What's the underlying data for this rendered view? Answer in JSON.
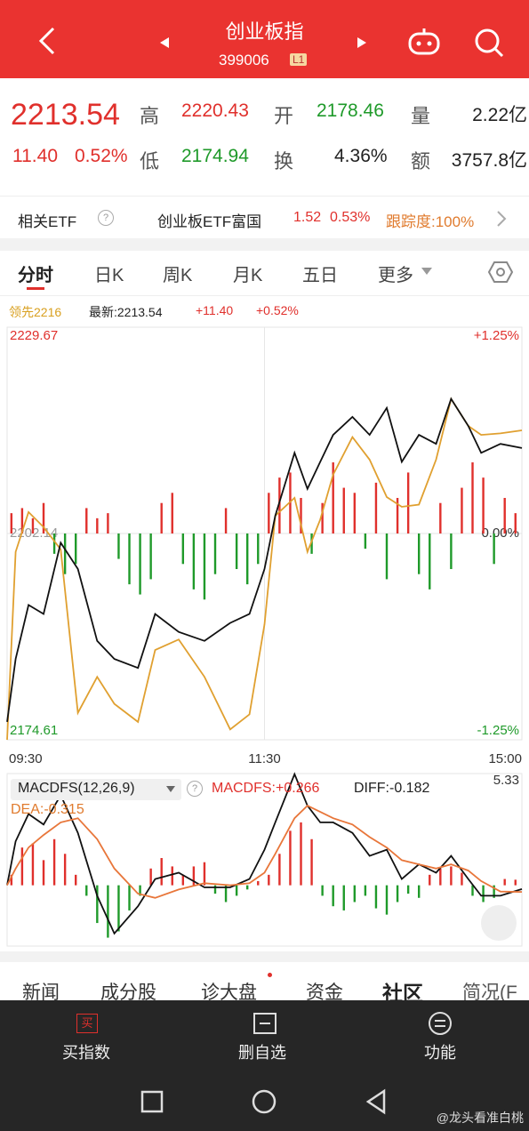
{
  "header": {
    "title": "创业板指",
    "code": "399006",
    "badge": "L1"
  },
  "quote": {
    "price": "2213.54",
    "change": "11.40",
    "pct": "0.52%",
    "fields": [
      {
        "label": "高",
        "value": "2220.43"
      },
      {
        "label": "开",
        "value": "2178.46"
      },
      {
        "label": "量",
        "value": "2.22亿"
      },
      {
        "label": "低",
        "value": "2174.94"
      },
      {
        "label": "换",
        "value": "4.36%"
      },
      {
        "label": "额",
        "value": "3757.8亿"
      }
    ]
  },
  "etf": {
    "label": "相关ETF",
    "name": "创业板ETF富国",
    "price": "1.52",
    "pct": "0.53%",
    "track": "跟踪度:100%"
  },
  "tabs": [
    "分时",
    "日K",
    "周K",
    "月K",
    "五日",
    "更多"
  ],
  "chart_data": [
    {
      "type": "line",
      "change": "+11.40",
      "pct": "+0.52%",
      "x": [
        0,
        4,
        10,
        17,
        25,
        33,
        42,
        50,
        61,
        69,
        80,
        92,
        104,
        113,
        120,
        125,
        134,
        140,
        146,
        152,
        161,
        169,
        177,
        184,
        192,
        200,
        207,
        215,
        221,
        230,
        240
      ],
      "xlim": [
        0,
        240
      ],
      "xticks": [
        {
          "value": 0,
          "label": "09:30"
        },
        {
          "value": 120,
          "label": "11:30"
        },
        {
          "value": 240,
          "label": "15:00"
        }
      ],
      "ylim": [
        2174.61,
        2229.67
      ],
      "yticks": [
        2174.61,
        2202.14,
        2229.67
      ],
      "y2lim": [
        -1.25,
        1.25
      ],
      "y2ticks": [
        {
          "value": -1.25,
          "label": "-1.25%"
        },
        {
          "value": 0,
          "label": "0.00%"
        },
        {
          "value": 1.25,
          "label": "+1.25%"
        }
      ],
      "grid": true,
      "series": [
        {
          "name": "领先2216",
          "color": "#e0a030",
          "values": [
            2174.6,
            2199.7,
            2205.0,
            2203.0,
            2200.0,
            2178.2,
            2183.0,
            2179.4,
            2177.0,
            2186.6,
            2188.0,
            2183.0,
            2176.0,
            2178.0,
            2190.0,
            2204.5,
            2206.9,
            2199.7,
            2204.0,
            2210.0,
            2215.0,
            2212.0,
            2207.0,
            2205.7,
            2206.0,
            2212.0,
            2220.1,
            2216.5,
            2215.3,
            2215.5,
            2215.9
          ]
        },
        {
          "name": "最新:2213.54",
          "color": "#111111",
          "values": [
            2177.0,
            2185.4,
            2192.6,
            2191.4,
            2200.9,
            2197.4,
            2187.8,
            2185.4,
            2184.2,
            2191.4,
            2189.0,
            2187.8,
            2190.2,
            2191.4,
            2197.4,
            2204.5,
            2212.9,
            2208.1,
            2211.7,
            2215.3,
            2217.7,
            2215.3,
            2218.9,
            2211.7,
            2215.3,
            2214.1,
            2220.1,
            2216.5,
            2212.9,
            2214.1,
            2213.54
          ]
        }
      ],
      "bars": {
        "up_color": "#e0302c",
        "down_color": "#1f9a2a",
        "x": [
          2,
          7,
          12,
          17,
          22,
          27,
          32,
          37,
          42,
          47,
          52,
          57,
          62,
          67,
          72,
          77,
          82,
          87,
          92,
          97,
          102,
          107,
          112,
          117,
          122,
          127,
          132,
          137,
          142,
          147,
          152,
          157,
          162,
          167,
          172,
          177,
          182,
          187,
          192,
          197,
          202,
          207,
          212,
          217,
          222,
          227,
          232,
          237
        ],
        "values": [
          20,
          25,
          15,
          30,
          -20,
          -40,
          -30,
          25,
          15,
          20,
          -25,
          -50,
          -60,
          -45,
          30,
          40,
          -30,
          -55,
          -65,
          -40,
          25,
          -35,
          -50,
          -30,
          40,
          55,
          60,
          35,
          -20,
          30,
          70,
          45,
          40,
          -15,
          50,
          -45,
          35,
          60,
          -40,
          -55,
          30,
          -35,
          45,
          70,
          55,
          -30,
          35,
          20
        ]
      }
    },
    {
      "type": "line",
      "title": "MACDFS(12,26,9)",
      "histogram_label": "MACDFS:+0.266",
      "x": [
        0,
        4,
        10,
        17,
        25,
        33,
        42,
        50,
        61,
        69,
        80,
        92,
        104,
        113,
        120,
        125,
        134,
        140,
        146,
        152,
        161,
        169,
        177,
        184,
        192,
        200,
        207,
        215,
        221,
        230,
        240
      ],
      "xlim": [
        0,
        240
      ],
      "ylim": [
        -2.9,
        5.33
      ],
      "yticks": [
        5.33
      ],
      "series": [
        {
          "name": "DIFF:-0.182",
          "color": "#111111",
          "values": [
            0,
            2.1,
            3.4,
            2.9,
            4.3,
            2.5,
            -0.5,
            -2.3,
            -1.0,
            0.3,
            0.6,
            -0.1,
            -0.1,
            0.3,
            1.7,
            3.0,
            5.3,
            3.8,
            3.0,
            3.0,
            2.5,
            1.4,
            1.7,
            0.3,
            1.0,
            0.6,
            1.4,
            0.3,
            -0.5,
            -0.5,
            -0.182
          ]
        },
        {
          "name": "DEA:-0.315",
          "color": "#e8763a",
          "values": [
            0,
            0.8,
            1.8,
            2.4,
            3.0,
            3.2,
            2.2,
            0.8,
            -0.4,
            -0.6,
            -0.2,
            0.1,
            0,
            0.1,
            0.6,
            1.5,
            3.2,
            3.8,
            3.5,
            3.2,
            2.9,
            2.3,
            1.8,
            1.2,
            1.0,
            0.8,
            1.0,
            0.7,
            0.2,
            -0.3,
            -0.315
          ]
        }
      ],
      "bars": {
        "up_color": "#e0302c",
        "down_color": "#1f9a2a",
        "x": [
          2,
          7,
          12,
          17,
          22,
          27,
          32,
          37,
          42,
          47,
          52,
          57,
          62,
          67,
          72,
          77,
          82,
          87,
          92,
          97,
          102,
          107,
          112,
          117,
          122,
          127,
          132,
          137,
          142,
          147,
          152,
          157,
          162,
          167,
          172,
          177,
          182,
          187,
          192,
          197,
          202,
          207,
          212,
          217,
          222,
          227,
          232,
          237
        ],
        "values": [
          0.5,
          1.8,
          2.0,
          1.2,
          2.2,
          1.5,
          0.5,
          -0.5,
          -1.8,
          -2.5,
          -2.2,
          -1.2,
          -0.5,
          0.8,
          1.3,
          0.9,
          0.5,
          0.9,
          1.1,
          -0.4,
          -0.8,
          -0.5,
          -0.2,
          0.2,
          0.5,
          1.5,
          2.6,
          3.0,
          2.2,
          -0.5,
          -1.0,
          -1.2,
          -0.8,
          -0.5,
          -1.1,
          -1.4,
          -0.8,
          -0.4,
          -0.6,
          0.5,
          0.8,
          0.9,
          0.6,
          -0.5,
          -0.8,
          -0.6,
          0.3,
          0.266
        ]
      }
    }
  ],
  "bottom_tabs": [
    "新闻",
    "成分股",
    "诊大盘",
    "资金",
    "社区",
    "简况(F"
  ],
  "actions": [
    {
      "icon": "买",
      "label": "买指数"
    },
    {
      "label": "删自选"
    },
    {
      "label": "功能"
    }
  ],
  "watermark": "@龙头看准白桃"
}
